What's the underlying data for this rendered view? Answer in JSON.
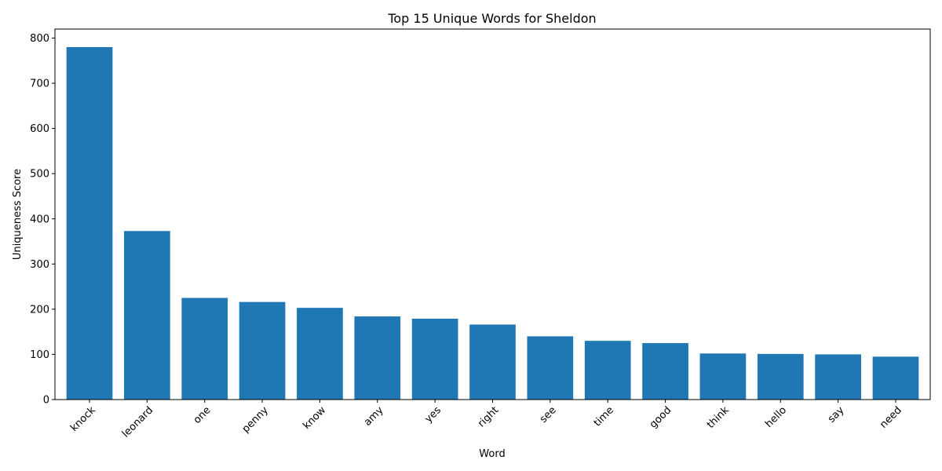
{
  "chart_data": {
    "type": "bar",
    "title": "Top 15 Unique Words for Sheldon",
    "xlabel": "Word",
    "ylabel": "Uniqueness Score",
    "categories": [
      "knock",
      "leonard",
      "one",
      "penny",
      "know",
      "amy",
      "yes",
      "right",
      "see",
      "time",
      "good",
      "think",
      "hello",
      "say",
      "need"
    ],
    "values": [
      780,
      373,
      225,
      216,
      203,
      184,
      179,
      166,
      140,
      130,
      125,
      102,
      101,
      100,
      95
    ],
    "ylim": [
      0,
      820
    ],
    "yticks": [
      0,
      100,
      200,
      300,
      400,
      500,
      600,
      700,
      800
    ],
    "bar_color": "#1f77b4",
    "grid": false,
    "legend": "none"
  }
}
